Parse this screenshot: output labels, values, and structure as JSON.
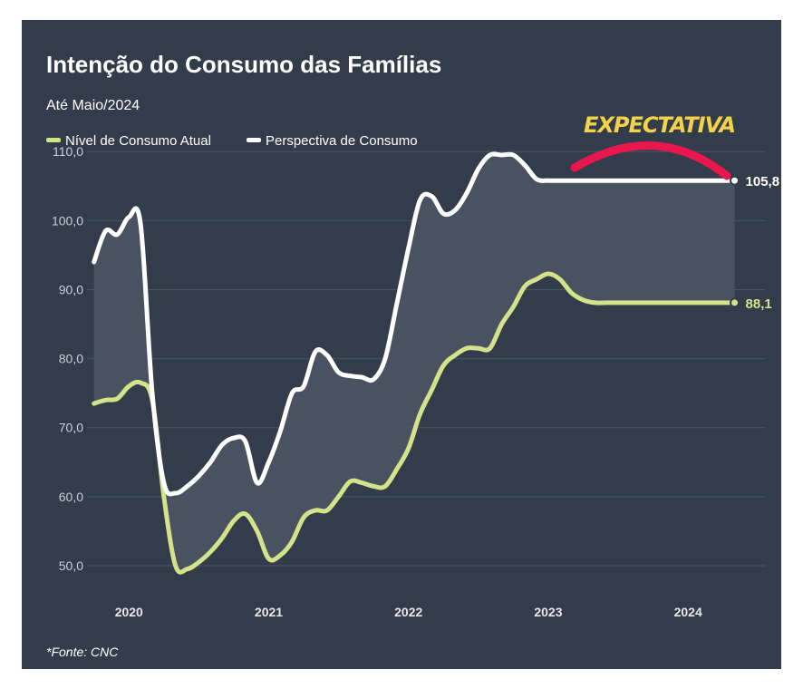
{
  "chart_data": {
    "type": "line",
    "title": "Intenção do Consumo das Famílias",
    "subtitle": "Até Maio/2024",
    "source": "*Fonte: CNC",
    "annotation": "EXPECTATIVA",
    "ylim": [
      45,
      112
    ],
    "yticks": [
      "110,0",
      "100,0",
      "90,0",
      "80,0",
      "70,0",
      "60,0",
      "50,0"
    ],
    "ytick_values": [
      110,
      100,
      90,
      80,
      70,
      60,
      50
    ],
    "xticks": [
      "2020",
      "2021",
      "2022",
      "2023",
      "2024"
    ],
    "xtick_values": [
      2020.0,
      2021.0,
      2022.0,
      2023.0,
      2024.0
    ],
    "xlim": [
      2019.7,
      2024.55
    ],
    "grid": true,
    "legend_position": "top-left",
    "colors": {
      "background": "#323c4b",
      "grid": "#4a5466",
      "band": "#4a5464"
    },
    "series": [
      {
        "name": "Nível de Consumo Atual",
        "color": "#d4e38a",
        "end_label": "88,1",
        "x": [
          2019.75,
          2019.833,
          2019.917,
          2020.0,
          2020.083,
          2020.167,
          2020.25,
          2020.333,
          2020.417,
          2020.5,
          2020.583,
          2020.667,
          2020.75,
          2020.833,
          2020.917,
          2021.0,
          2021.083,
          2021.167,
          2021.25,
          2021.333,
          2021.417,
          2021.5,
          2021.583,
          2021.667,
          2021.75,
          2021.833,
          2021.917,
          2022.0,
          2022.083,
          2022.167,
          2022.25,
          2022.333,
          2022.417,
          2022.5,
          2022.583,
          2022.667,
          2022.75,
          2022.833,
          2022.917,
          2023.0,
          2023.083,
          2023.167,
          2023.25,
          2023.333,
          2023.417,
          2023.5,
          2023.583,
          2023.667,
          2023.75,
          2023.833,
          2023.917,
          2024.0,
          2024.083,
          2024.167,
          2024.25,
          2024.333
        ],
        "values": [
          73.5,
          74.0,
          74.2,
          76.0,
          76.5,
          74.0,
          60.0,
          50.0,
          49.5,
          50.5,
          52.0,
          54.0,
          56.5,
          57.5,
          55.0,
          51.0,
          51.5,
          53.5,
          57.0,
          58.0,
          58.0,
          60.0,
          62.2,
          62.0,
          61.5,
          61.5,
          64.0,
          67.0,
          72.0,
          75.5,
          79.0,
          80.5,
          81.5,
          81.5,
          81.5,
          85.0,
          87.5,
          90.5,
          91.5,
          92.3,
          91.5,
          89.5,
          88.5,
          88.1,
          88.1,
          88.1,
          88.1,
          88.1,
          88.1,
          88.1,
          88.1,
          88.1,
          88.1,
          88.1,
          88.1,
          88.1
        ]
      },
      {
        "name": "Perspectiva de Consumo",
        "color": "#ffffff",
        "end_label": "105,8",
        "x": [
          2019.75,
          2019.833,
          2019.917,
          2020.0,
          2020.083,
          2020.167,
          2020.25,
          2020.333,
          2020.417,
          2020.5,
          2020.583,
          2020.667,
          2020.75,
          2020.833,
          2020.917,
          2021.0,
          2021.083,
          2021.167,
          2021.25,
          2021.333,
          2021.417,
          2021.5,
          2021.583,
          2021.667,
          2021.75,
          2021.833,
          2021.917,
          2022.0,
          2022.083,
          2022.167,
          2022.25,
          2022.333,
          2022.417,
          2022.5,
          2022.583,
          2022.667,
          2022.75,
          2022.833,
          2022.917,
          2023.0,
          2023.083,
          2023.167,
          2023.25,
          2023.333,
          2023.417,
          2023.5,
          2023.583,
          2023.667,
          2023.75,
          2023.833,
          2023.917,
          2024.0,
          2024.083,
          2024.167,
          2024.25,
          2024.333
        ],
        "values": [
          94.0,
          98.5,
          98.0,
          100.5,
          99.5,
          75.0,
          62.0,
          60.5,
          61.5,
          63.0,
          65.0,
          67.5,
          68.5,
          68.0,
          62.0,
          65.0,
          69.5,
          75.0,
          76.0,
          81.0,
          80.5,
          78.0,
          77.5,
          77.3,
          77.0,
          80.0,
          88.0,
          96.0,
          103.0,
          103.5,
          101.0,
          101.5,
          104.0,
          107.5,
          109.5,
          109.5,
          109.5,
          108.0,
          106.0,
          105.8,
          105.8,
          105.8,
          105.8,
          105.8,
          105.8,
          105.8,
          105.8,
          105.8,
          105.8,
          105.8,
          105.8,
          105.8,
          105.8,
          105.8,
          105.8,
          105.8
        ]
      }
    ]
  }
}
